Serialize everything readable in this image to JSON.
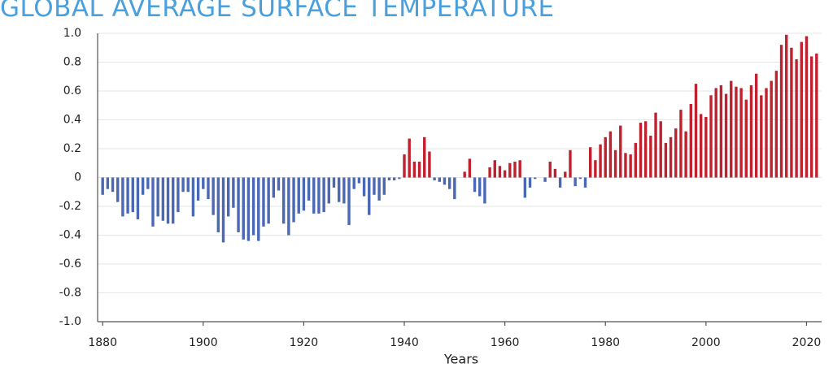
{
  "chart_data": {
    "type": "bar",
    "title": "GLOBAL AVERAGE SURFACE TEMPERATURE",
    "x_label": "Years",
    "x": [
      1880,
      1881,
      1882,
      1883,
      1884,
      1885,
      1886,
      1887,
      1888,
      1889,
      1890,
      1891,
      1892,
      1893,
      1894,
      1895,
      1896,
      1897,
      1898,
      1899,
      1900,
      1901,
      1902,
      1903,
      1904,
      1905,
      1906,
      1907,
      1908,
      1909,
      1910,
      1911,
      1912,
      1913,
      1914,
      1915,
      1916,
      1917,
      1918,
      1919,
      1920,
      1921,
      1922,
      1923,
      1924,
      1925,
      1926,
      1927,
      1928,
      1929,
      1930,
      1931,
      1932,
      1933,
      1934,
      1935,
      1936,
      1937,
      1938,
      1939,
      1940,
      1941,
      1942,
      1943,
      1944,
      1945,
      1946,
      1947,
      1948,
      1949,
      1950,
      1951,
      1952,
      1953,
      1954,
      1955,
      1956,
      1957,
      1958,
      1959,
      1960,
      1961,
      1962,
      1963,
      1964,
      1965,
      1966,
      1967,
      1968,
      1969,
      1970,
      1971,
      1972,
      1973,
      1974,
      1975,
      1976,
      1977,
      1978,
      1979,
      1980,
      1981,
      1982,
      1983,
      1984,
      1985,
      1986,
      1987,
      1988,
      1989,
      1990,
      1991,
      1992,
      1993,
      1994,
      1995,
      1996,
      1997,
      1998,
      1999,
      2000,
      2001,
      2002,
      2003,
      2004,
      2005,
      2006,
      2007,
      2008,
      2009,
      2010,
      2011,
      2012,
      2013,
      2014,
      2015,
      2016,
      2017,
      2018,
      2019,
      2020,
      2021,
      2022
    ],
    "values": [
      -0.12,
      -0.08,
      -0.1,
      -0.17,
      -0.27,
      -0.25,
      -0.24,
      -0.29,
      -0.12,
      -0.08,
      -0.34,
      -0.27,
      -0.3,
      -0.32,
      -0.32,
      -0.24,
      -0.1,
      -0.1,
      -0.27,
      -0.16,
      -0.08,
      -0.15,
      -0.26,
      -0.38,
      -0.45,
      -0.27,
      -0.21,
      -0.38,
      -0.43,
      -0.44,
      -0.4,
      -0.44,
      -0.34,
      -0.32,
      -0.14,
      -0.09,
      -0.32,
      -0.4,
      -0.31,
      -0.25,
      -0.23,
      -0.16,
      -0.25,
      -0.25,
      -0.24,
      -0.18,
      -0.07,
      -0.17,
      -0.18,
      -0.33,
      -0.08,
      -0.04,
      -0.13,
      -0.26,
      -0.12,
      -0.16,
      -0.12,
      -0.02,
      -0.02,
      -0.01,
      0.16,
      0.27,
      0.11,
      0.11,
      0.28,
      0.18,
      -0.02,
      -0.03,
      -0.05,
      -0.08,
      -0.15,
      0,
      0.04,
      0.13,
      -0.1,
      -0.13,
      -0.18,
      0.07,
      0.12,
      0.08,
      0.05,
      0.1,
      0.11,
      0.12,
      -0.14,
      -0.07,
      -0.01,
      0,
      -0.03,
      0.11,
      0.06,
      -0.07,
      0.04,
      0.19,
      -0.06,
      -0.01,
      -0.07,
      0.21,
      0.12,
      0.23,
      0.28,
      0.32,
      0.19,
      0.36,
      0.17,
      0.16,
      0.24,
      0.38,
      0.39,
      0.29,
      0.45,
      0.39,
      0.24,
      0.28,
      0.34,
      0.47,
      0.32,
      0.51,
      0.65,
      0.44,
      0.42,
      0.57,
      0.62,
      0.64,
      0.58,
      0.67,
      0.63,
      0.62,
      0.54,
      0.64,
      0.72,
      0.57,
      0.62,
      0.67,
      0.74,
      0.92,
      0.99,
      0.9,
      0.82,
      0.94,
      0.98,
      0.84,
      0.86
    ],
    "positive_color": "#c0212f",
    "negative_color": "#4a68b3",
    "xlim": [
      1879,
      2023
    ],
    "xticks": [
      1880,
      1900,
      1920,
      1940,
      1960,
      1980,
      2000,
      2020
    ],
    "ylim": [
      -1,
      1
    ],
    "yticks": [
      {
        "value": -1,
        "label": "-1.0"
      },
      -0.8,
      -0.6,
      -0.4,
      -0.2,
      0,
      0.2,
      0.4,
      0.6,
      0.8,
      {
        "value": 1,
        "label": "1.0"
      }
    ],
    "grid": true
  }
}
